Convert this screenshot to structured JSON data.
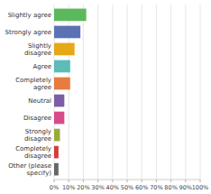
{
  "chart_data": {
    "type": "bar",
    "orientation": "horizontal",
    "categories": [
      "Slightly agree",
      "Strongly agree",
      "Slightly\ndisagree",
      "Agree",
      "Completely\nagree",
      "Neutral",
      "Disagree",
      "Strongly\ndisagree",
      "Completely\ndisagree",
      "Other (please\nspecify)"
    ],
    "values": [
      22,
      18,
      14,
      11,
      11,
      7,
      7,
      4,
      3,
      3
    ],
    "colors": [
      "#5cb85c",
      "#5b73b5",
      "#e6a817",
      "#5bbcb8",
      "#e87c3e",
      "#7b5ea7",
      "#d84a8a",
      "#9aab3a",
      "#d63b3b",
      "#666666"
    ],
    "xlim": [
      0,
      100
    ],
    "xticks": [
      {
        "value": 0,
        "label": "0%"
      },
      {
        "value": 10,
        "label": "10%"
      },
      {
        "value": 20,
        "label": "20%"
      },
      {
        "value": 30,
        "label": "30%"
      },
      {
        "value": 40,
        "label": "40%"
      },
      {
        "value": 50,
        "label": "50%"
      },
      {
        "value": 60,
        "label": "60%"
      },
      {
        "value": 70,
        "label": "70%"
      },
      {
        "value": 80,
        "label": "80%"
      },
      {
        "value": 90,
        "label": "90%"
      },
      {
        "value": 100,
        "label": "100%"
      }
    ],
    "grid": true
  }
}
